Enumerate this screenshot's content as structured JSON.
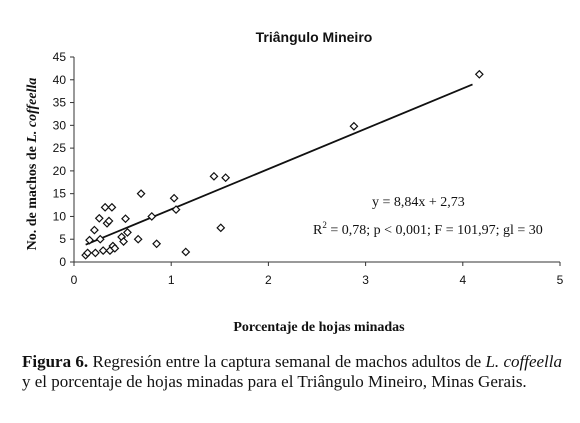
{
  "chart_data": {
    "type": "scatter",
    "title": "Triângulo Mineiro",
    "xlabel": "Porcentaje de hojas minadas",
    "ylabel_prefix": "No. de machos de ",
    "ylabel_italic": "L. coffeella",
    "xlim": [
      0,
      5
    ],
    "ylim": [
      0,
      45
    ],
    "x_ticks": [
      0,
      1,
      2,
      3,
      4,
      5
    ],
    "y_ticks": [
      0,
      5,
      10,
      15,
      20,
      25,
      30,
      35,
      40,
      45
    ],
    "grid": false,
    "marker": "diamond",
    "points": [
      {
        "x": 0.12,
        "y": 1.5
      },
      {
        "x": 0.14,
        "y": 2.0
      },
      {
        "x": 0.16,
        "y": 4.8
      },
      {
        "x": 0.21,
        "y": 7.0
      },
      {
        "x": 0.22,
        "y": 2.0
      },
      {
        "x": 0.26,
        "y": 9.6
      },
      {
        "x": 0.27,
        "y": 5.0
      },
      {
        "x": 0.3,
        "y": 2.5
      },
      {
        "x": 0.32,
        "y": 12.0
      },
      {
        "x": 0.34,
        "y": 8.5
      },
      {
        "x": 0.36,
        "y": 9.0
      },
      {
        "x": 0.37,
        "y": 2.5
      },
      {
        "x": 0.39,
        "y": 12.0
      },
      {
        "x": 0.4,
        "y": 3.5
      },
      {
        "x": 0.42,
        "y": 3.0
      },
      {
        "x": 0.49,
        "y": 5.5
      },
      {
        "x": 0.51,
        "y": 4.5
      },
      {
        "x": 0.53,
        "y": 9.5
      },
      {
        "x": 0.55,
        "y": 6.5
      },
      {
        "x": 0.66,
        "y": 5.0
      },
      {
        "x": 0.69,
        "y": 15.0
      },
      {
        "x": 0.8,
        "y": 10.0
      },
      {
        "x": 0.85,
        "y": 4.0
      },
      {
        "x": 1.03,
        "y": 14.0
      },
      {
        "x": 1.05,
        "y": 11.5
      },
      {
        "x": 1.15,
        "y": 2.2
      },
      {
        "x": 1.44,
        "y": 18.8
      },
      {
        "x": 1.51,
        "y": 7.5
      },
      {
        "x": 1.56,
        "y": 18.5
      },
      {
        "x": 2.88,
        "y": 29.8
      },
      {
        "x": 4.17,
        "y": 41.2
      }
    ],
    "regression": {
      "slope": 8.84,
      "intercept": 2.73,
      "x_range": [
        0.12,
        4.1
      ]
    },
    "annotations": {
      "equation": "y = 8,84x + 2,73",
      "stats_r": "R",
      "stats_sup": "2",
      "stats_rest": " = 0,78; p < 0,001; F = 101,97; gl = 30"
    }
  },
  "caption": {
    "label": "Figura 6.",
    "text_1": " Regresión entre la captura semanal de machos adultos de ",
    "italic": "L. coffeella",
    "text_2": " y el porcentaje de hojas minadas para el Triângulo Mineiro, Minas Gerais."
  }
}
